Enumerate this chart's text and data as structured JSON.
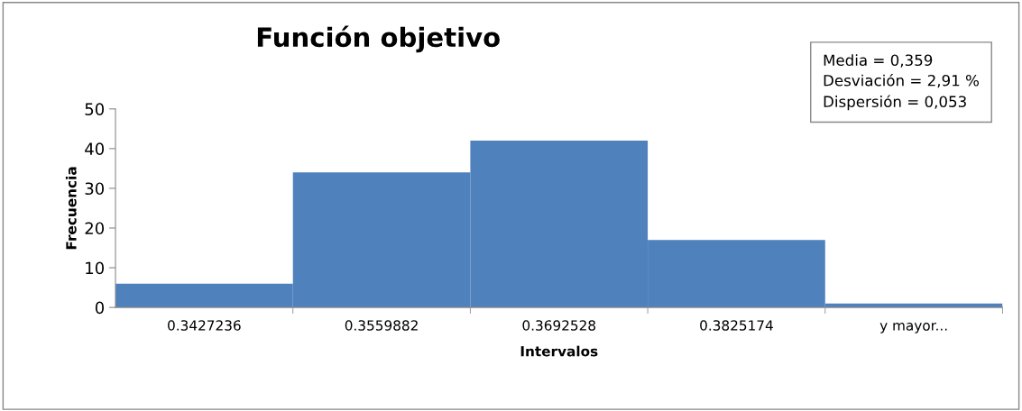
{
  "chart_data": {
    "type": "bar",
    "title": "Función objetivo",
    "xlabel": "Intervalos",
    "ylabel": "Frecuencia",
    "categories": [
      "0.3427236",
      "0.3559882",
      "0.3692528",
      "0.3825174",
      "y mayor..."
    ],
    "values": [
      6,
      34,
      42,
      17,
      1
    ],
    "color": "#4f81bd",
    "ylim": [
      0,
      50
    ],
    "yticks": [
      0,
      10,
      20,
      30,
      40,
      50
    ],
    "grid": false,
    "legend": false,
    "annotations": [
      "Media = 0,359\nDesviación = 2,91 %\nDispersión = 0,053"
    ]
  }
}
